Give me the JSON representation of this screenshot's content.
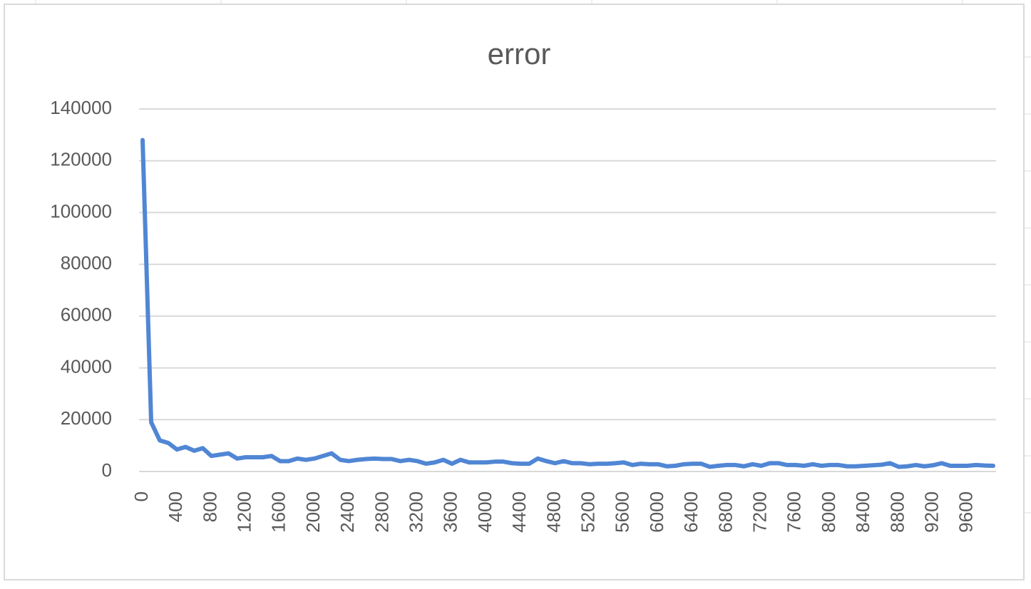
{
  "chart_data": {
    "type": "line",
    "title": "error",
    "categories": [
      0,
      null,
      null,
      null,
      400,
      null,
      null,
      null,
      800,
      null,
      null,
      null,
      1200,
      null,
      null,
      null,
      1600,
      null,
      null,
      null,
      2000,
      null,
      null,
      null,
      2400,
      null,
      null,
      null,
      2800,
      null,
      null,
      null,
      3200,
      null,
      null,
      null,
      3600,
      null,
      null,
      null,
      4000,
      null,
      null,
      null,
      4400,
      null,
      null,
      null,
      4800,
      null,
      null,
      null,
      5200,
      null,
      null,
      null,
      5600,
      null,
      null,
      null,
      6000,
      null,
      null,
      null,
      6400,
      null,
      null,
      null,
      6800,
      null,
      null,
      null,
      7200,
      null,
      null,
      null,
      7600,
      null,
      null,
      null,
      8000,
      null,
      null,
      null,
      8400,
      null,
      null,
      null,
      8800,
      null,
      null,
      null,
      9200,
      null,
      null,
      null,
      9600,
      null,
      null,
      null
    ],
    "series": [
      {
        "color": "#5086d4",
        "values": [
          128000,
          19000,
          12000,
          11000,
          8500,
          9500,
          8000,
          9000,
          6000,
          6500,
          7000,
          5000,
          5500,
          5500,
          5500,
          6000,
          4000,
          4000,
          5000,
          4500,
          5000,
          6000,
          7000,
          4500,
          4000,
          4500,
          4800,
          5000,
          4800,
          4800,
          4000,
          4500,
          4000,
          3000,
          3500,
          4500,
          3000,
          4500,
          3500,
          3500,
          3500,
          3800,
          3800,
          3200,
          3000,
          3000,
          5000,
          4000,
          3200,
          4000,
          3200,
          3200,
          2800,
          3000,
          3000,
          3200,
          3500,
          2500,
          3000,
          2800,
          2800,
          2000,
          2200,
          2800,
          3000,
          3000,
          1800,
          2200,
          2500,
          2500,
          2000,
          2800,
          2200,
          3200,
          3200,
          2500,
          2500,
          2200,
          2800,
          2200,
          2500,
          2500,
          2000,
          2000,
          2200,
          2400,
          2600,
          3200,
          1800,
          2000,
          2500,
          2000,
          2400,
          3200,
          2200,
          2200,
          2200,
          2500,
          2300,
          2200
        ]
      }
    ],
    "ylim": [
      0,
      140000
    ],
    "yticks": [
      0,
      20000,
      40000,
      60000,
      80000,
      100000,
      120000,
      140000
    ],
    "grid": true
  }
}
